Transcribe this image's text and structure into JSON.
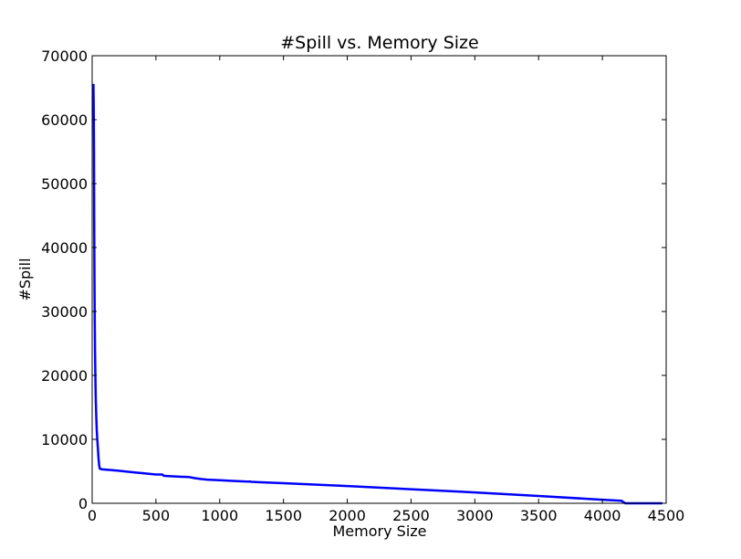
{
  "chart_data": {
    "type": "line",
    "title": "#Spill vs. Memory Size",
    "xlabel": "Memory Size",
    "ylabel": "#Spill",
    "xlim": [
      0,
      4500
    ],
    "ylim": [
      0,
      70000
    ],
    "xticks": [
      0,
      500,
      1000,
      1500,
      2000,
      2500,
      3000,
      3500,
      4000,
      4500
    ],
    "yticks": [
      0,
      10000,
      20000,
      30000,
      40000,
      50000,
      60000,
      70000
    ],
    "grid": false,
    "series": [
      {
        "color": "#0000ff",
        "x": [
          10,
          12,
          14,
          16,
          18,
          20,
          22,
          25,
          28,
          32,
          36,
          40,
          45,
          50,
          55,
          60,
          80,
          150,
          200,
          300,
          400,
          500,
          550,
          560,
          600,
          700,
          760,
          800,
          850,
          900,
          1000,
          1100,
          1200,
          1240,
          1250,
          1300,
          1500,
          2000,
          2500,
          3000,
          3500,
          4000,
          4150,
          4160,
          4180,
          4470
        ],
        "y": [
          65600,
          62000,
          55000,
          45000,
          36000,
          29000,
          24000,
          20000,
          16500,
          13500,
          11500,
          10000,
          8500,
          7000,
          5900,
          5400,
          5300,
          5200,
          5100,
          4900,
          4700,
          4500,
          4500,
          4300,
          4250,
          4150,
          4100,
          3950,
          3800,
          3700,
          3600,
          3500,
          3420,
          3400,
          3350,
          3300,
          3150,
          2700,
          2200,
          1700,
          1150,
          550,
          400,
          250,
          0,
          0
        ]
      }
    ]
  }
}
